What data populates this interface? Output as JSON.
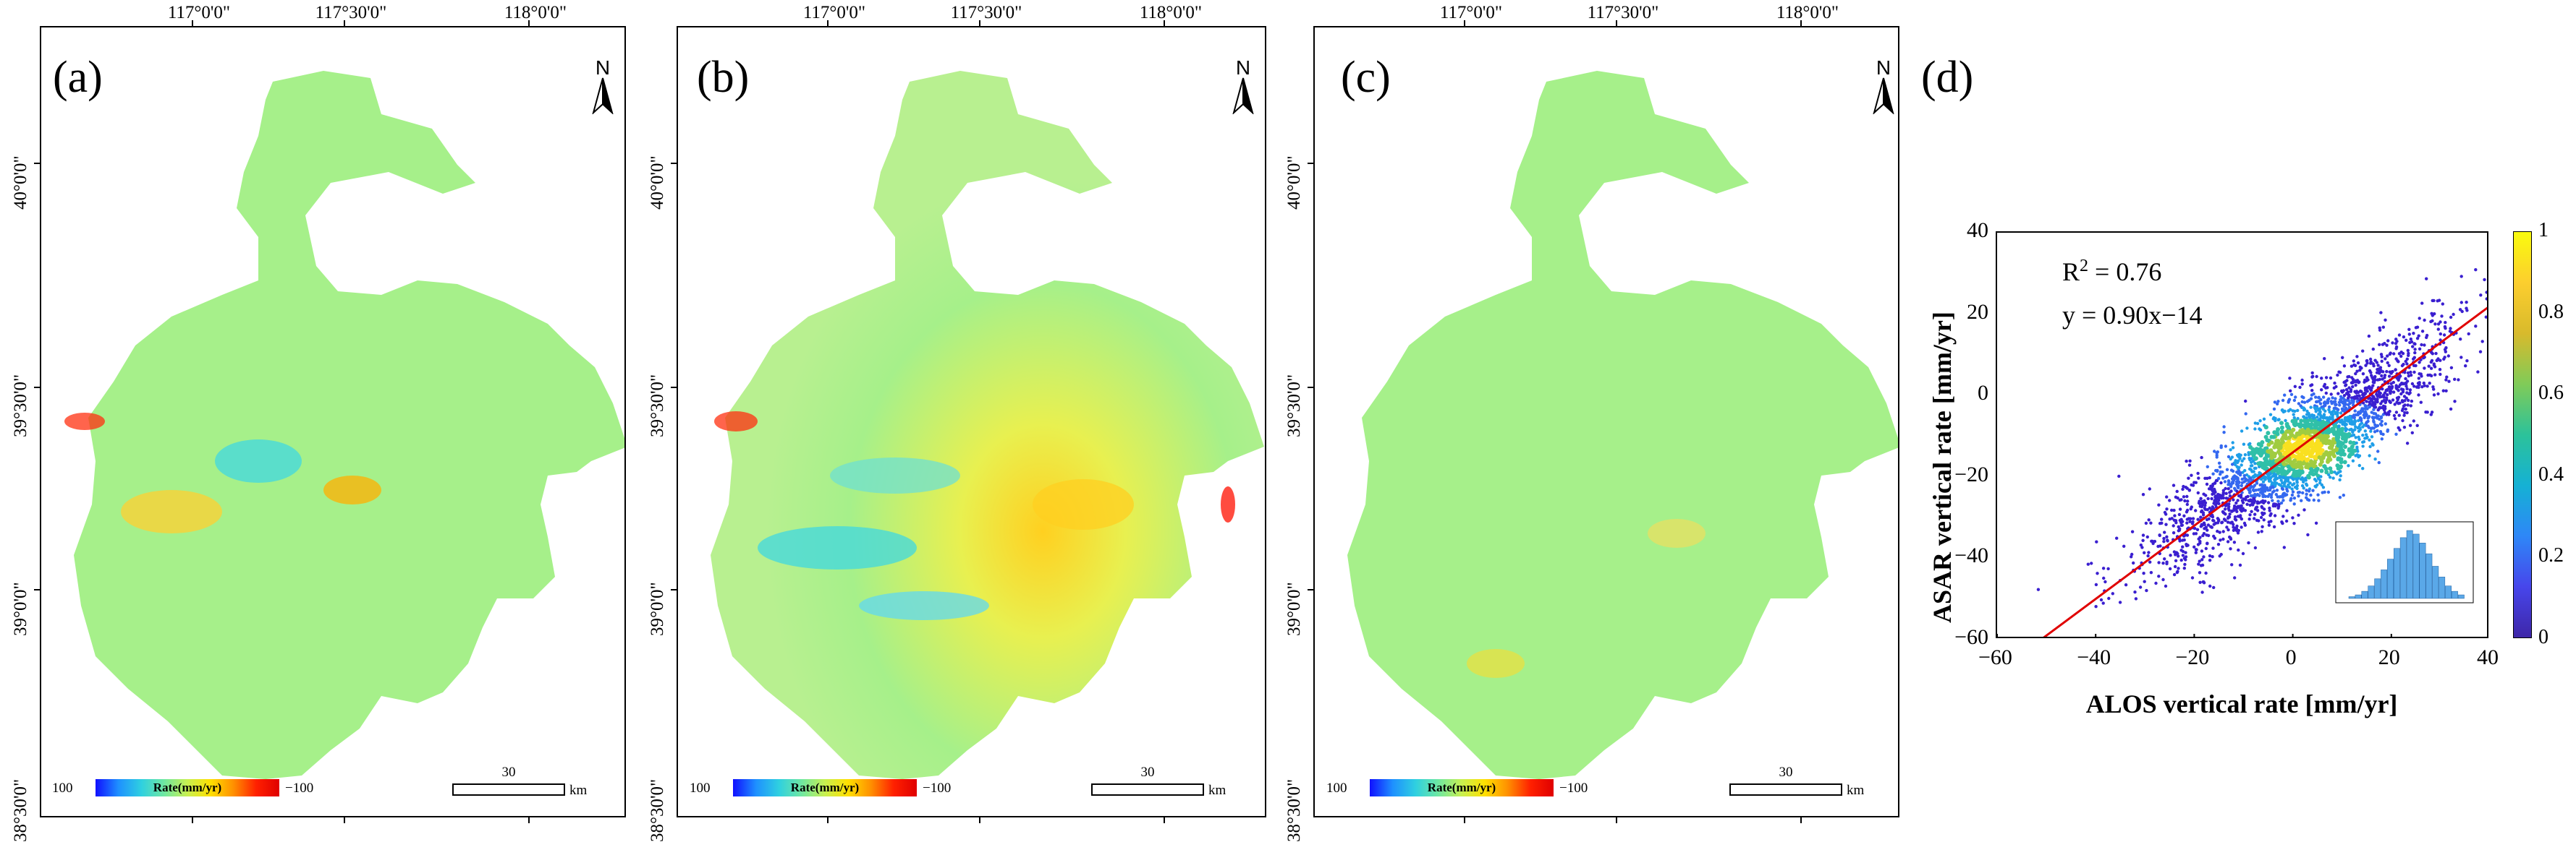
{
  "panels": [
    {
      "label": "(a)",
      "lon_ticks": [
        "117°0'0\"",
        "117°30'0\"",
        "118°0'0\""
      ],
      "lat_ticks": [
        "40°0'0\"",
        "39°30'0\"",
        "39°0'0\"",
        "38°30'0\""
      ],
      "north": "N",
      "legend": {
        "min": "100",
        "title": "Rate(mm/yr)",
        "max": "−100"
      },
      "scale": {
        "value": "30",
        "unit": "km"
      }
    },
    {
      "label": "(b)",
      "lon_ticks": [
        "117°0'0\"",
        "117°30'0\"",
        "118°0'0\""
      ],
      "lat_ticks": [
        "40°0'0\"",
        "39°30'0\"",
        "39°0'0\"",
        "38°30'0\""
      ],
      "north": "N",
      "legend": {
        "min": "100",
        "title": "Rate(mm/yr)",
        "max": "−100"
      },
      "scale": {
        "value": "30",
        "unit": "km"
      }
    },
    {
      "label": "(c)",
      "lon_ticks": [
        "117°0'0\"",
        "117°30'0\"",
        "118°0'0\""
      ],
      "lat_ticks": [
        "40°0'0\"",
        "39°30'0\"",
        "39°0'0\"",
        "38°30'0\""
      ],
      "north": "N",
      "legend": {
        "min": "100",
        "title": "Rate(mm/yr)",
        "max": "−100"
      },
      "scale": {
        "value": "30",
        "unit": "km"
      }
    }
  ],
  "scatter": {
    "label": "(d)",
    "r2_base": "R",
    "r2_sup": "2",
    "r2_rest": " = 0.76",
    "equation": "y = 0.90x−14"
  },
  "chart_data": {
    "type": "scatter",
    "title": "",
    "xlabel": "ALOS vertical rate [mm/yr]",
    "ylabel": "ASAR vertical rate [mm/yr]",
    "xlim": [
      -60,
      40
    ],
    "ylim": [
      -60,
      40
    ],
    "x_ticks": [
      "−60",
      "−40",
      "−20",
      "0",
      "20",
      "40"
    ],
    "y_ticks": [
      "40",
      "20",
      "0",
      "−20",
      "−40",
      "−60"
    ],
    "fit_line": {
      "slope": 0.9,
      "intercept": -14,
      "color": "#e00000"
    },
    "point_density_center": [
      2,
      -13
    ],
    "colorbar": {
      "ticks": [
        "1",
        "0.8",
        "0.6",
        "0.4",
        "0.2",
        "0"
      ],
      "range": [
        0,
        1
      ]
    },
    "inset_histogram": {
      "counts": [
        1,
        2,
        4,
        7,
        11,
        16,
        22,
        28,
        34,
        38,
        36,
        31,
        25,
        18,
        12,
        7,
        4,
        2
      ],
      "color": "#5aa8e8"
    }
  },
  "colors": {
    "map_base": "#a6f08a",
    "scatter_points": "#3a1fd0",
    "fit_line": "#e00000"
  }
}
